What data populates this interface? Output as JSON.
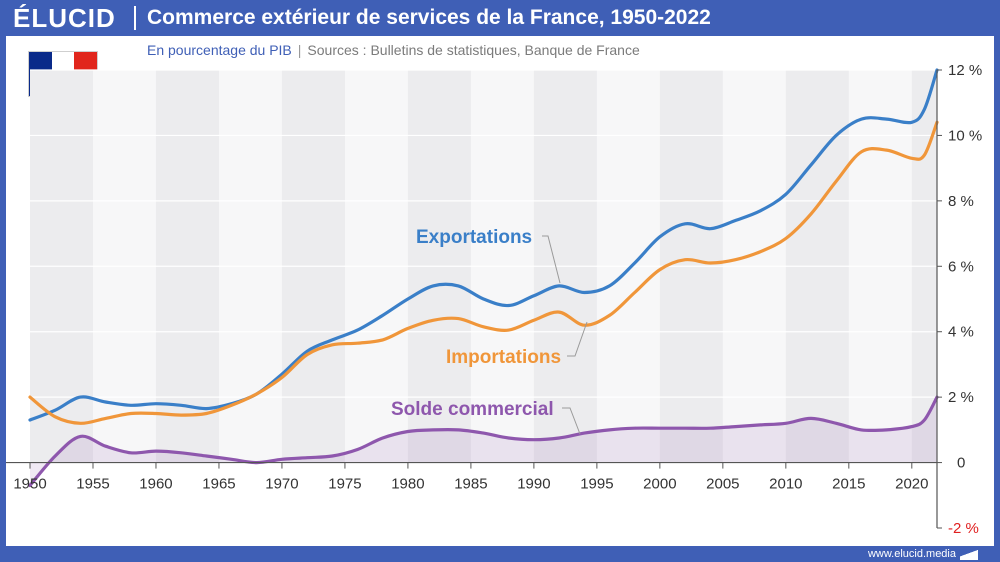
{
  "brand": "ÉLUCID",
  "title": "Commerce extérieur de services de la France, 1950-2022",
  "subtitle_unit": "En pourcentage du PIB",
  "subtitle_sep": "|",
  "subtitle_source": "Sources : Bulletins de statistiques, Banque de France",
  "website": "www.elucid.media",
  "flag_colors": [
    "#0a2a8a",
    "#ffffff",
    "#e1261c"
  ],
  "colors": {
    "header": "#3f5fb6",
    "exportations": "#3a7fc8",
    "importations": "#f0963a",
    "solde": "#8e57ad",
    "negative_tick": "#e02020"
  },
  "chart_data": {
    "type": "line",
    "title": "Commerce extérieur de services de la France, 1950-2022",
    "xlabel": "",
    "ylabel": "",
    "xlim": [
      1950,
      2022
    ],
    "ylim": [
      -2,
      12
    ],
    "grid": true,
    "x_ticks": [
      "1950",
      "1955",
      "1960",
      "1965",
      "1970",
      "1975",
      "1980",
      "1985",
      "1990",
      "1995",
      "2000",
      "2005",
      "2010",
      "2015",
      "2020"
    ],
    "y_ticks": [
      "12 %",
      "10 %",
      "8 %",
      "6 %",
      "4 %",
      "2 %",
      "0",
      "-2 %"
    ],
    "series": [
      {
        "name": "Exportations",
        "x": [
          1950,
          1952,
          1954,
          1956,
          1958,
          1960,
          1962,
          1964,
          1966,
          1968,
          1970,
          1972,
          1974,
          1976,
          1978,
          1980,
          1982,
          1984,
          1986,
          1988,
          1990,
          1992,
          1994,
          1996,
          1998,
          2000,
          2002,
          2004,
          2006,
          2008,
          2010,
          2012,
          2014,
          2016,
          2018,
          2020,
          2021,
          2022
        ],
        "values": [
          1.3,
          1.6,
          2.0,
          1.85,
          1.75,
          1.8,
          1.75,
          1.65,
          1.8,
          2.1,
          2.7,
          3.4,
          3.75,
          4.05,
          4.5,
          5.0,
          5.4,
          5.4,
          5.0,
          4.8,
          5.1,
          5.4,
          5.2,
          5.4,
          6.1,
          6.9,
          7.3,
          7.15,
          7.4,
          7.7,
          8.2,
          9.1,
          10.0,
          10.5,
          10.5,
          10.4,
          10.8,
          12.0
        ]
      },
      {
        "name": "Importations",
        "x": [
          1950,
          1952,
          1954,
          1956,
          1958,
          1960,
          1962,
          1964,
          1966,
          1968,
          1970,
          1972,
          1974,
          1976,
          1978,
          1980,
          1982,
          1984,
          1986,
          1988,
          1990,
          1992,
          1994,
          1996,
          1998,
          2000,
          2002,
          2004,
          2006,
          2008,
          2010,
          2012,
          2014,
          2016,
          2018,
          2020,
          2021,
          2022
        ],
        "values": [
          2.0,
          1.4,
          1.2,
          1.35,
          1.5,
          1.5,
          1.45,
          1.5,
          1.75,
          2.1,
          2.6,
          3.3,
          3.6,
          3.65,
          3.75,
          4.1,
          4.35,
          4.4,
          4.15,
          4.05,
          4.35,
          4.6,
          4.2,
          4.5,
          5.2,
          5.9,
          6.2,
          6.1,
          6.2,
          6.45,
          6.85,
          7.6,
          8.6,
          9.5,
          9.55,
          9.3,
          9.4,
          10.4
        ]
      },
      {
        "name": "Solde commercial",
        "x": [
          1950,
          1952,
          1954,
          1956,
          1958,
          1960,
          1962,
          1964,
          1966,
          1968,
          1970,
          1972,
          1974,
          1976,
          1978,
          1980,
          1982,
          1984,
          1986,
          1988,
          1990,
          1992,
          1994,
          1996,
          1998,
          2000,
          2002,
          2004,
          2006,
          2008,
          2010,
          2012,
          2014,
          2016,
          2018,
          2020,
          2021,
          2022
        ],
        "values": [
          -0.7,
          0.2,
          0.8,
          0.5,
          0.3,
          0.35,
          0.3,
          0.2,
          0.1,
          0.0,
          0.1,
          0.15,
          0.2,
          0.4,
          0.75,
          0.95,
          1.0,
          1.0,
          0.9,
          0.75,
          0.7,
          0.75,
          0.9,
          1.0,
          1.05,
          1.05,
          1.05,
          1.05,
          1.1,
          1.15,
          1.2,
          1.35,
          1.2,
          1.0,
          1.0,
          1.1,
          1.3,
          2.0
        ]
      }
    ],
    "labels": [
      {
        "series": "Exportations",
        "text": "Exportations"
      },
      {
        "series": "Importations",
        "text": "Importations"
      },
      {
        "series": "Solde commercial",
        "text": "Solde commercial"
      }
    ]
  }
}
